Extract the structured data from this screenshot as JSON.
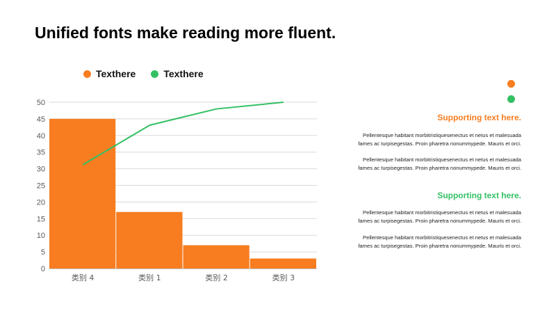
{
  "title": "Unified fonts make reading more fluent.",
  "colors": {
    "orange": "#F77D20",
    "green": "#33C064"
  },
  "legend": [
    {
      "label": "Texthere",
      "color": "#F77D20"
    },
    {
      "label": "Texthere",
      "color": "#33C064"
    }
  ],
  "chart_data": {
    "type": "bar",
    "categories": [
      "类别 4",
      "类别 1",
      "类别 2",
      "类别 3"
    ],
    "series": [
      {
        "name": "Texthere",
        "type": "bar",
        "color": "#F77D20",
        "values": [
          45,
          17,
          7,
          3
        ]
      },
      {
        "name": "Texthere",
        "type": "line",
        "color": "#33C064",
        "values": [
          31.2,
          43.1,
          48,
          50
        ]
      }
    ],
    "ylim": [
      0,
      50
    ],
    "yticks": [
      0,
      5,
      10,
      15,
      20,
      25,
      30,
      35,
      40,
      45,
      50
    ],
    "grid": true,
    "legend_position": "top-left"
  },
  "sidebar": {
    "sections": [
      {
        "heading": "Supporting text here.",
        "paragraphs": [
          "Pellentesque habitant morbitristiquesenectus et netus et malesuada fames ac turpisegestas. Proin pharetra nonummypede. Mauris et orci.",
          "Pellentesque habitant morbitristiquesenectus et netus et malesuada fames ac turpisegestas. Proin pharetra nonummypede. Mauris et orci."
        ]
      },
      {
        "heading": "Supporting text here.",
        "paragraphs": [
          "Pellentesque habitant morbitristiquesenectus et netus et malesuada fames ac turpisegestas. Proin pharetra nonummypede. Mauris et orci.",
          "Pellentesque habitant morbitristiquesenectus et netus et malesuada fames ac turpisegestas. Proin pharetra nonummypede. Mauris et orci."
        ]
      }
    ]
  }
}
